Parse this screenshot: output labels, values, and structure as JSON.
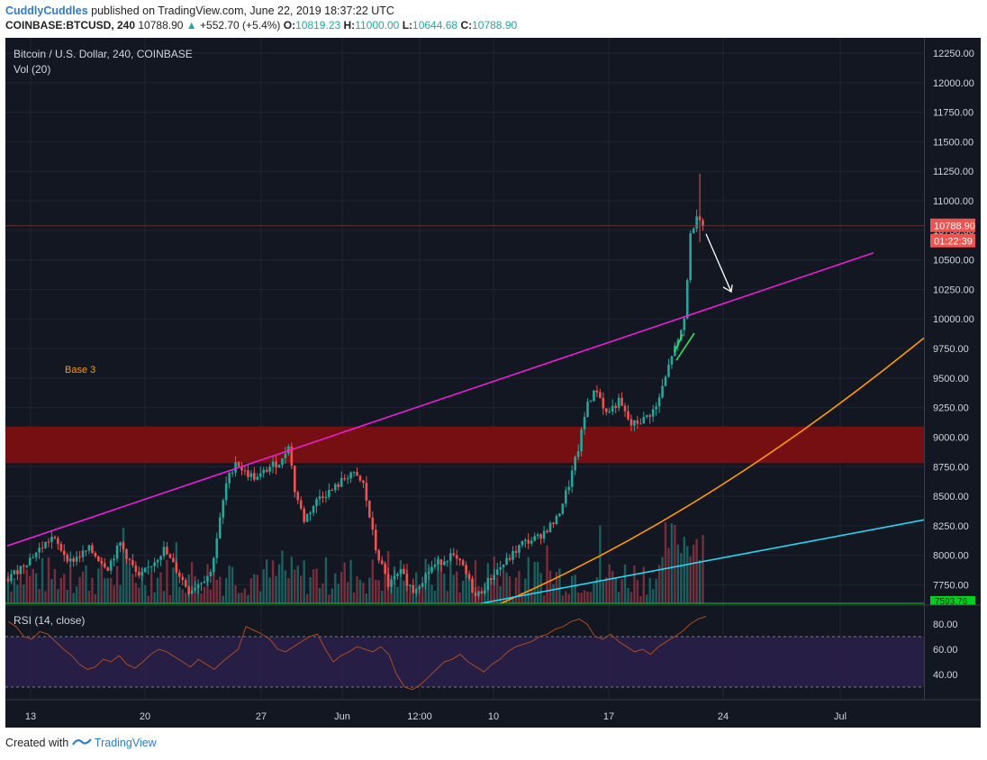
{
  "header": {
    "author": "CuddlyCuddles",
    "published": "published on TradingView.com, June 22, 2019 18:37:22 UTC"
  },
  "symbol_line": {
    "symbol": "COINBASE:BTCUSD, 240",
    "last": "10788.90",
    "arrow": "▲",
    "change": "+552.70 (+5.4%)",
    "o_label": "O:",
    "o": "10819.23",
    "h_label": "H:",
    "h": "11000.00",
    "l_label": "L:",
    "l": "10644.68",
    "c_label": "C:",
    "c": "10788.90"
  },
  "pane": {
    "title": "Bitcoin / U.S. Dollar, 240, COINBASE",
    "vol": "Vol (20)",
    "base_label": "Base 3",
    "last_price_tag": "10788.90",
    "countdown_tag": "01:22:39",
    "low_tag": "7593.76"
  },
  "rsi": {
    "title": "RSI (14, close)"
  },
  "footer": {
    "created": "Created with",
    "brand": "TradingView"
  },
  "colors": {
    "background": "#131722",
    "up": "#26a69a",
    "down": "#ef5350",
    "magenta_line": "#e91ed8",
    "orange_line": "#ff9800",
    "cyan_line": "#26d7f2",
    "resistance_zone": "#7a0f12",
    "rsi_line": "#b04a1b",
    "rsi_band": "#2a1f4a"
  },
  "chart_data": {
    "type": "candlestick",
    "ylim": [
      7593.76,
      12250
    ],
    "y_ticks": [
      12250,
      12000,
      11750,
      11500,
      11250,
      11000,
      10750,
      10500,
      10250,
      10000,
      9750,
      9500,
      9250,
      9000,
      8750,
      8500,
      8250,
      8000,
      7750
    ],
    "y_tick_labels": [
      "12250.00",
      "12000.00",
      "11750.00",
      "11500.00",
      "11250.00",
      "11000.00",
      "10750.00",
      "10500.00",
      "10250.00",
      "10000.00",
      "9750.00",
      "9500.00",
      "9250.00",
      "9000.00",
      "8750.00",
      "8500.00",
      "8250.00",
      "8000.00",
      "7750.00"
    ],
    "x_tick_labels": [
      "13",
      "20",
      "27",
      "Jun",
      "12:00",
      "10",
      "17",
      "24",
      "Jul"
    ],
    "resistance_zone": [
      8780,
      9090
    ],
    "last_price": 10788.9,
    "price_path": [
      [
        0,
        7800
      ],
      [
        8,
        8000
      ],
      [
        14,
        8150
      ],
      [
        20,
        7950
      ],
      [
        26,
        8050
      ],
      [
        32,
        7900
      ],
      [
        36,
        8100
      ],
      [
        42,
        7800
      ],
      [
        50,
        8050
      ],
      [
        58,
        7700
      ],
      [
        65,
        7850
      ],
      [
        70,
        8600
      ],
      [
        73,
        8800
      ],
      [
        76,
        8700
      ],
      [
        80,
        8650
      ],
      [
        84,
        8750
      ],
      [
        88,
        8800
      ],
      [
        90,
        8950
      ],
      [
        92,
        8550
      ],
      [
        95,
        8300
      ],
      [
        100,
        8500
      ],
      [
        104,
        8550
      ],
      [
        110,
        8700
      ],
      [
        114,
        8600
      ],
      [
        118,
        8050
      ],
      [
        122,
        7750
      ],
      [
        126,
        7850
      ],
      [
        130,
        7700
      ],
      [
        136,
        7900
      ],
      [
        142,
        8000
      ],
      [
        146,
        7900
      ],
      [
        150,
        7650
      ],
      [
        152,
        7700
      ],
      [
        156,
        7850
      ],
      [
        160,
        7950
      ],
      [
        165,
        8100
      ],
      [
        170,
        8150
      ],
      [
        176,
        8300
      ],
      [
        180,
        8600
      ],
      [
        183,
        8900
      ],
      [
        186,
        9300
      ],
      [
        189,
        9400
      ],
      [
        192,
        9200
      ],
      [
        196,
        9300
      ],
      [
        200,
        9100
      ],
      [
        204,
        9150
      ],
      [
        208,
        9250
      ],
      [
        211,
        9500
      ],
      [
        213,
        9700
      ],
      [
        215,
        9800
      ],
      [
        217,
        10000
      ],
      [
        219,
        10700
      ],
      [
        221,
        10900
      ],
      [
        223,
        10790
      ]
    ],
    "rsi_ylim": [
      20,
      95
    ],
    "rsi_ticks": [
      80,
      60,
      40
    ],
    "rsi_band": [
      30,
      70
    ],
    "rsi_values": [
      82,
      78,
      70,
      68,
      74,
      72,
      66,
      60,
      55,
      48,
      44,
      46,
      52,
      50,
      55,
      48,
      45,
      50,
      56,
      60,
      58,
      54,
      50,
      46,
      52,
      48,
      44,
      50,
      55,
      60,
      78,
      75,
      72,
      68,
      60,
      58,
      62,
      66,
      70,
      72,
      60,
      50,
      55,
      58,
      62,
      60,
      58,
      62,
      56,
      40,
      30,
      28,
      32,
      38,
      44,
      50,
      52,
      56,
      50,
      46,
      42,
      48,
      52,
      58,
      62,
      64,
      66,
      70,
      72,
      76,
      78,
      82,
      84,
      80,
      70,
      68,
      72,
      66,
      62,
      58,
      60,
      56,
      62,
      66,
      70,
      74,
      80,
      84,
      86
    ]
  }
}
